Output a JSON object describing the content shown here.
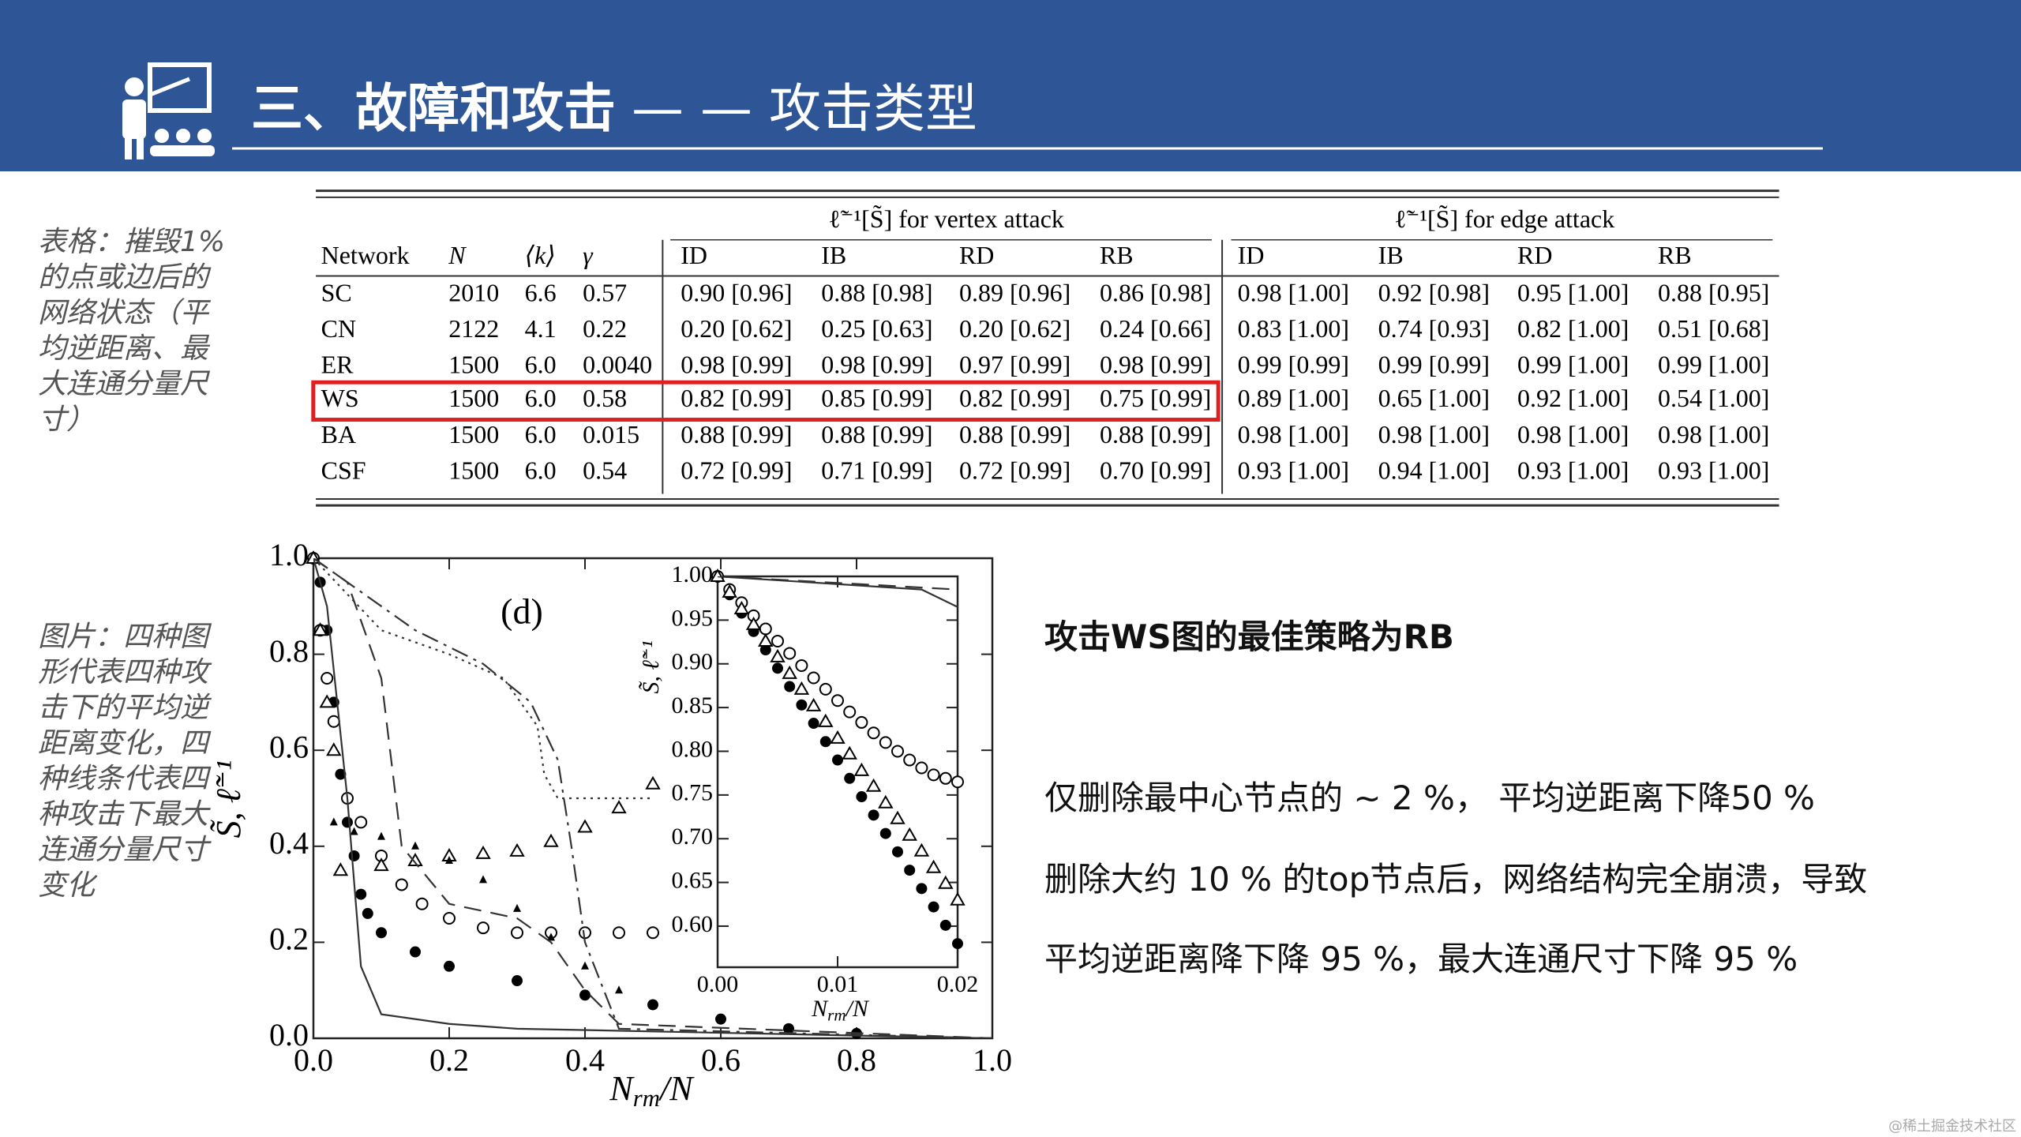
{
  "header": {
    "title_bold": "三、故障和攻击",
    "title_rest": "— — 攻击类型"
  },
  "captions": {
    "table": "表格：摧毁1%的点或边后的网络状态（平均逆距离、最大连通分量尺寸）",
    "figure": "图片：四种图形代表四种攻击下的平均逆距离变化，四种线条代表四种攻击下最大连通分量尺寸变化"
  },
  "table": {
    "group_headers": [
      "ℓ̃⁻¹[S̃] for vertex attack",
      "ℓ̃⁻¹[S̃] for edge attack"
    ],
    "columns": [
      "Network",
      "N",
      "⟨k⟩",
      "γ",
      "ID",
      "IB",
      "RD",
      "RB",
      "ID",
      "IB",
      "RD",
      "RB"
    ],
    "rows": [
      [
        "SC",
        "2010",
        "6.6",
        "0.57",
        "0.90 [0.96]",
        "0.88 [0.98]",
        "0.89 [0.96]",
        "0.86 [0.98]",
        "0.98 [1.00]",
        "0.92 [0.98]",
        "0.95 [1.00]",
        "0.88 [0.95]"
      ],
      [
        "CN",
        "2122",
        "4.1",
        "0.22",
        "0.20 [0.62]",
        "0.25 [0.63]",
        "0.20 [0.62]",
        "0.24 [0.66]",
        "0.83 [1.00]",
        "0.74 [0.93]",
        "0.82 [1.00]",
        "0.51 [0.68]"
      ],
      [
        "ER",
        "1500",
        "6.0",
        "0.0040",
        "0.98 [0.99]",
        "0.98 [0.99]",
        "0.97 [0.99]",
        "0.98 [0.99]",
        "0.99 [0.99]",
        "0.99 [0.99]",
        "0.99 [1.00]",
        "0.99 [1.00]"
      ],
      [
        "WS",
        "1500",
        "6.0",
        "0.58",
        "0.82 [0.99]",
        "0.85 [0.99]",
        "0.82 [0.99]",
        "0.75 [0.99]",
        "0.89 [1.00]",
        "0.65 [1.00]",
        "0.92 [1.00]",
        "0.54 [1.00]"
      ],
      [
        "BA",
        "1500",
        "6.0",
        "0.015",
        "0.88 [0.99]",
        "0.88 [0.99]",
        "0.88 [0.99]",
        "0.88 [0.99]",
        "0.98 [1.00]",
        "0.98 [1.00]",
        "0.98 [1.00]",
        "0.98 [1.00]"
      ],
      [
        "CSF",
        "1500",
        "6.0",
        "0.54",
        "0.72 [0.99]",
        "0.71 [0.99]",
        "0.72 [0.99]",
        "0.70 [0.99]",
        "0.93 [1.00]",
        "0.94 [1.00]",
        "0.93 [1.00]",
        "0.93 [1.00]"
      ]
    ],
    "highlight_row": 3,
    "highlight_color": "#e02020"
  },
  "figure": {
    "type": "line",
    "label": "(d)",
    "xlabel": [
      "N",
      "rm",
      "/N"
    ],
    "ylabel": "S̃, ℓ̃⁻¹",
    "xlim": [
      0,
      1
    ],
    "ylim": [
      0,
      1
    ],
    "xticks": [
      {
        "value": 0,
        "label": "0.0"
      },
      {
        "value": 0.2,
        "label": "0.2"
      },
      {
        "value": 0.4,
        "label": "0.4"
      },
      {
        "value": 0.6,
        "label": "0.6"
      },
      {
        "value": 0.8,
        "label": "0.8"
      },
      {
        "value": 1,
        "label": "1.0"
      }
    ],
    "yticks": [
      {
        "value": 0,
        "label": "0.0"
      },
      {
        "value": 0.2,
        "label": "0.2"
      },
      {
        "value": 0.4,
        "label": "0.4"
      },
      {
        "value": 0.6,
        "label": "0.6"
      },
      {
        "value": 0.8,
        "label": "0.8"
      },
      {
        "value": 1,
        "label": "1.0"
      }
    ],
    "series": [
      {
        "style": "filled-circle",
        "x": [
          0,
          0.01,
          0.02,
          0.03,
          0.04,
          0.05,
          0.06,
          0.07,
          0.08,
          0.1,
          0.15,
          0.2,
          0.3,
          0.4,
          0.5,
          0.6,
          0.7,
          0.8
        ],
        "values": [
          1,
          0.95,
          0.85,
          0.7,
          0.55,
          0.45,
          0.38,
          0.3,
          0.26,
          0.22,
          0.18,
          0.15,
          0.12,
          0.09,
          0.07,
          0.04,
          0.02,
          0.01
        ]
      },
      {
        "style": "open-circle",
        "x": [
          0,
          0.01,
          0.02,
          0.03,
          0.05,
          0.07,
          0.1,
          0.13,
          0.16,
          0.2,
          0.25,
          0.3,
          0.35,
          0.4,
          0.45,
          0.5
        ],
        "values": [
          1,
          0.85,
          0.75,
          0.66,
          0.5,
          0.45,
          0.38,
          0.32,
          0.28,
          0.25,
          0.23,
          0.22,
          0.22,
          0.22,
          0.22,
          0.22
        ]
      },
      {
        "style": "open-triangle",
        "x": [
          0,
          0.01,
          0.02,
          0.03,
          0.04,
          0.1,
          0.15,
          0.2,
          0.25,
          0.3,
          0.35,
          0.4,
          0.45,
          0.5
        ],
        "values": [
          1,
          0.85,
          0.7,
          0.6,
          0.35,
          0.36,
          0.37,
          0.38,
          0.385,
          0.39,
          0.41,
          0.44,
          0.48,
          0.53
        ]
      },
      {
        "style": "small-filled",
        "x": [
          0.03,
          0.06,
          0.1,
          0.15,
          0.2,
          0.25,
          0.3,
          0.35,
          0.4,
          0.45,
          0.5
        ],
        "values": [
          0.45,
          0.43,
          0.42,
          0.4,
          0.37,
          0.33,
          0.27,
          0.21,
          0.15,
          0.1,
          0.07
        ]
      },
      {
        "style": "solid",
        "x": [
          0,
          0.02,
          0.05,
          0.07,
          0.1,
          0.2,
          0.3,
          1
        ],
        "values": [
          1,
          0.9,
          0.5,
          0.15,
          0.05,
          0.03,
          0.02,
          0
        ]
      },
      {
        "style": "dashed",
        "x": [
          0,
          0.05,
          0.1,
          0.13,
          0.2,
          0.3,
          0.35,
          0.4,
          0.45,
          1
        ],
        "values": [
          1,
          0.95,
          0.75,
          0.4,
          0.28,
          0.25,
          0.2,
          0.1,
          0.03,
          0
        ]
      },
      {
        "style": "dotted",
        "x": [
          0,
          0.1,
          0.2,
          0.28,
          0.33,
          0.34,
          0.36,
          0.4,
          0.5
        ],
        "values": [
          1,
          0.85,
          0.8,
          0.75,
          0.65,
          0.55,
          0.5,
          0.5,
          0.5
        ]
      },
      {
        "style": "dash-dot",
        "x": [
          0,
          0.15,
          0.25,
          0.32,
          0.36,
          0.38,
          0.4,
          0.45,
          1
        ],
        "values": [
          1,
          0.85,
          0.78,
          0.7,
          0.58,
          0.4,
          0.2,
          0.02,
          0
        ]
      }
    ],
    "inset": {
      "xlabel": [
        "N",
        "rm",
        "/N"
      ],
      "ylabel": "S̃, ℓ̃⁻¹",
      "xlim": [
        0,
        0.02
      ],
      "ylim": [
        0.553,
        1
      ],
      "xticks": [
        {
          "value": 0,
          "label": "0.00"
        },
        {
          "value": 0.01,
          "label": "0.01"
        },
        {
          "value": 0.02,
          "label": "0.02"
        }
      ],
      "yticks": [
        {
          "value": 0.6,
          "label": "0.60"
        },
        {
          "value": 0.65,
          "label": "0.65"
        },
        {
          "value": 0.7,
          "label": "0.70"
        },
        {
          "value": 0.75,
          "label": "0.75"
        },
        {
          "value": 0.8,
          "label": "0.80"
        },
        {
          "value": 0.85,
          "label": "0.85"
        },
        {
          "value": 0.9,
          "label": "0.90"
        },
        {
          "value": 0.95,
          "label": "0.95"
        },
        {
          "value": 1,
          "label": "1.00"
        }
      ],
      "series": [
        {
          "style": "filled-circle",
          "x": [
            0,
            0.001,
            0.002,
            0.003,
            0.004,
            0.005,
            0.006,
            0.007,
            0.008,
            0.009,
            0.01,
            0.011,
            0.012,
            0.013,
            0.014,
            0.015,
            0.016,
            0.017,
            0.018,
            0.019,
            0.02
          ],
          "values": [
            1,
            0.979,
            0.958,
            0.937,
            0.916,
            0.895,
            0.874,
            0.853,
            0.832,
            0.811,
            0.79,
            0.769,
            0.748,
            0.727,
            0.706,
            0.685,
            0.664,
            0.643,
            0.622,
            0.601,
            0.58
          ]
        },
        {
          "style": "open-circle",
          "x": [
            0,
            0.001,
            0.002,
            0.003,
            0.004,
            0.005,
            0.006,
            0.007,
            0.008,
            0.009,
            0.01,
            0.011,
            0.012,
            0.013,
            0.014,
            0.015,
            0.016,
            0.017,
            0.018,
            0.019,
            0.02
          ],
          "values": [
            1,
            0.985,
            0.97,
            0.955,
            0.94,
            0.926,
            0.912,
            0.898,
            0.884,
            0.871,
            0.858,
            0.845,
            0.833,
            0.821,
            0.81,
            0.8,
            0.79,
            0.781,
            0.773,
            0.769,
            0.765
          ]
        },
        {
          "style": "open-triangle",
          "x": [
            0,
            0.001,
            0.002,
            0.003,
            0.004,
            0.005,
            0.006,
            0.007,
            0.008,
            0.009,
            0.01,
            0.011,
            0.012,
            0.013,
            0.014,
            0.015,
            0.016,
            0.017,
            0.018,
            0.019,
            0.02
          ],
          "values": [
            1,
            0.982,
            0.963,
            0.945,
            0.926,
            0.908,
            0.889,
            0.871,
            0.852,
            0.834,
            0.815,
            0.797,
            0.778,
            0.76,
            0.741,
            0.723,
            0.704,
            0.686,
            0.667,
            0.649,
            0.63
          ]
        },
        {
          "style": "solid",
          "x": [
            0,
            0.017,
            0.02
          ],
          "values": [
            1,
            0.985,
            0.965
          ]
        },
        {
          "style": "dashed",
          "x": [
            0,
            0.02
          ],
          "values": [
            1,
            0.985
          ]
        }
      ]
    }
  },
  "text": {
    "heading": "攻击WS图的最佳策略为RB",
    "lines": [
      "仅删除最中心节点的 ~ 2 %， 平均逆距离下降50 %",
      "删除大约 10 % 的top节点后，网络结构完全崩溃，导致",
      "平均逆距离降下降 95 %，最大连通尺寸下降 95 %"
    ]
  },
  "watermark": "@稀土掘金技术社区"
}
